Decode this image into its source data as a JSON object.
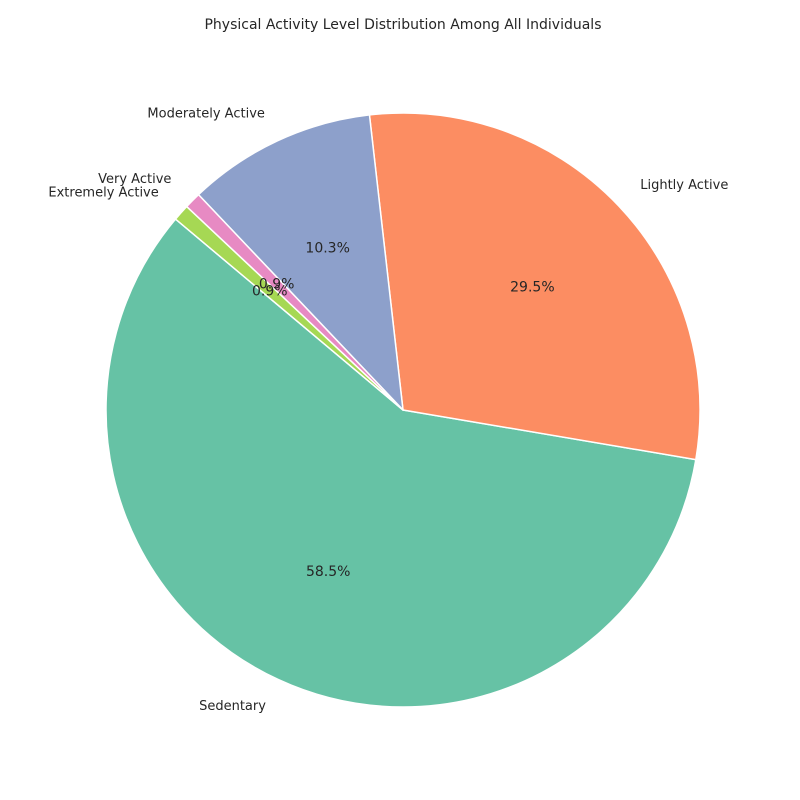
{
  "chart_data": {
    "type": "pie",
    "title": "Physical Activity Level Distribution Among All Individuals",
    "categories": [
      "Sedentary",
      "Lightly Active",
      "Moderately Active",
      "Very Active",
      "Extremely Active"
    ],
    "values": [
      58.5,
      29.5,
      10.3,
      0.9,
      0.9
    ],
    "value_labels": [
      "58.5%",
      "29.5%",
      "10.3%",
      "0.9%",
      "0.9%"
    ],
    "colors": [
      "#66c2a5",
      "#fc8d62",
      "#8da0cb",
      "#e78ac3",
      "#a6d854"
    ],
    "start_angle_deg": 140,
    "direction": "counterclockwise",
    "legend": "none"
  }
}
